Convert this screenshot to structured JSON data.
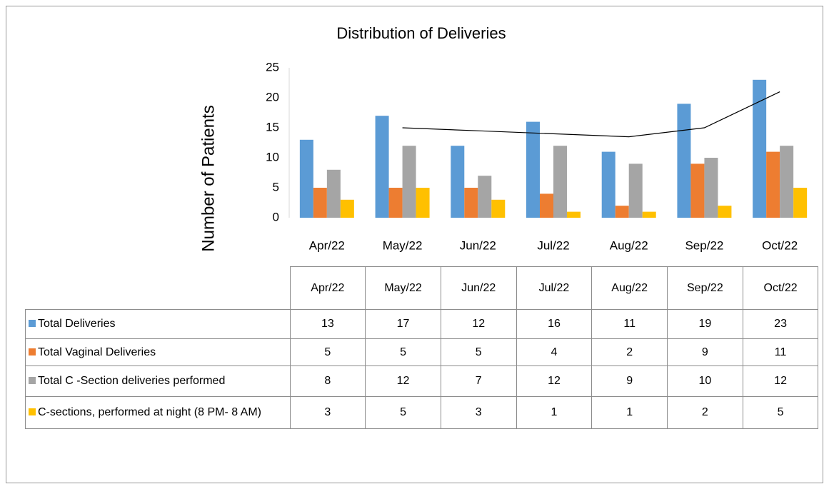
{
  "chart_data": {
    "type": "bar",
    "title": "Distribution of Deliveries",
    "y_label": "Number of Patients",
    "categories": [
      "Apr/22",
      "May/22",
      "Jun/22",
      "Jul/22",
      "Aug/22",
      "Sep/22",
      "Oct/22"
    ],
    "series": [
      {
        "name": "Total Deliveries",
        "color": "#5b9bd5",
        "values": [
          13,
          17,
          12,
          16,
          11,
          19,
          23
        ]
      },
      {
        "name": "Total Vaginal Deliveries",
        "color": "#ed7d31",
        "values": [
          5,
          5,
          5,
          4,
          2,
          9,
          11
        ]
      },
      {
        "name": "Total C -Section deliveries performed",
        "color": "#a5a5a5",
        "values": [
          8,
          12,
          7,
          12,
          9,
          10,
          12
        ]
      },
      {
        "name": "C-sections, performed at night (8 PM- 8 AM)",
        "color": "#ffc000",
        "values": [
          3,
          5,
          3,
          1,
          1,
          2,
          5
        ]
      }
    ],
    "trendline": {
      "color": "#000000",
      "values": [
        null,
        15,
        14.5,
        14,
        13.5,
        15,
        21
      ]
    },
    "ylim": [
      0,
      25
    ],
    "yticks": [
      0,
      5,
      10,
      15,
      20,
      25
    ],
    "grid": false
  }
}
